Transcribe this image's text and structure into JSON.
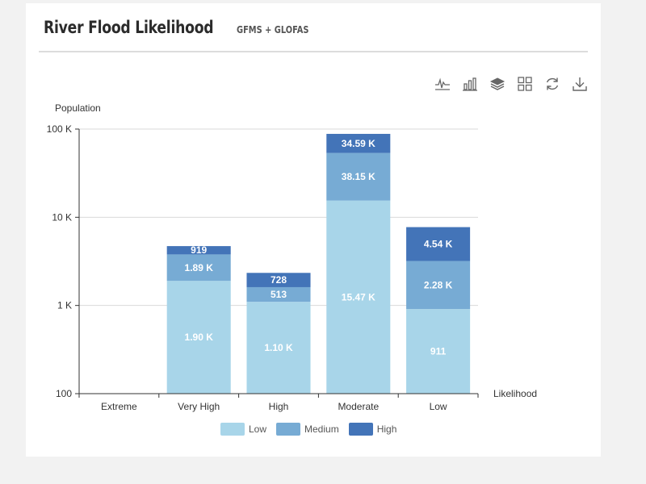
{
  "header": {
    "title": "River Flood Likelihood",
    "subtitle": "GFMS + GLOFAS"
  },
  "toolbar": [
    {
      "name": "line-chart-icon",
      "label": "Line"
    },
    {
      "name": "bar-chart-icon",
      "label": "Bar"
    },
    {
      "name": "stack-icon",
      "label": "Stack"
    },
    {
      "name": "grid-icon",
      "label": "Table"
    },
    {
      "name": "refresh-icon",
      "label": "Restore"
    },
    {
      "name": "download-icon",
      "label": "Save"
    }
  ],
  "colors": {
    "Low": "#a8d5e9",
    "Medium": "#77abd4",
    "High": "#4374b8"
  },
  "chart_data": {
    "type": "bar",
    "stacked": true,
    "yscale": "log",
    "ylim": [
      100,
      100000
    ],
    "ylabel": "Population",
    "xlabel": "Likelihood",
    "yticks": [
      {
        "value": 100,
        "label": "100"
      },
      {
        "value": 1000,
        "label": "1 K"
      },
      {
        "value": 10000,
        "label": "10 K"
      },
      {
        "value": 100000,
        "label": "100 K"
      }
    ],
    "categories": [
      "Extreme",
      "Very High",
      "High",
      "Moderate",
      "Low"
    ],
    "series": [
      {
        "name": "Low",
        "values": [
          0,
          1900,
          1100,
          15470,
          911
        ],
        "labels": [
          "",
          "1.90 K",
          "1.10 K",
          "15.47 K",
          "911"
        ]
      },
      {
        "name": "Medium",
        "values": [
          0,
          1890,
          513,
          38150,
          2280
        ],
        "labels": [
          "",
          "1.89 K",
          "513",
          "38.15 K",
          "2.28 K"
        ]
      },
      {
        "name": "High",
        "values": [
          0,
          919,
          728,
          34590,
          4540
        ],
        "labels": [
          "",
          "919",
          "728",
          "34.59 K",
          "4.54 K"
        ]
      }
    ],
    "legend_position": "bottom-center",
    "grid": true
  }
}
